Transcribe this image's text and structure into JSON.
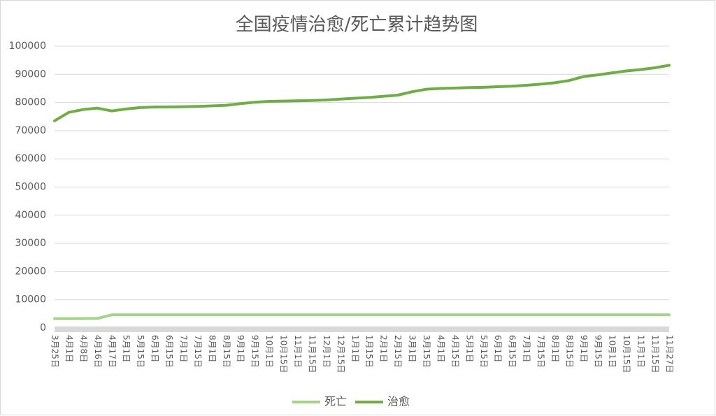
{
  "chart_data": {
    "type": "line",
    "title": "全国疫情治愈/死亡累计趋势图",
    "categories": [
      "3月25日",
      "4月1日",
      "4月8日",
      "4月16日",
      "4月17日",
      "5月1日",
      "5月15日",
      "6月1日",
      "6月15日",
      "7月1日",
      "7月15日",
      "8月1日",
      "8月15日",
      "9月1日",
      "9月15日",
      "10月1日",
      "10月15日",
      "11月1日",
      "11月15日",
      "12月1日",
      "12月15日",
      "1月1日",
      "1月15日",
      "2月1日",
      "2月15日",
      "3月1日",
      "3月15日",
      "4月1日",
      "4月15日",
      "5月1日",
      "5月15日",
      "6月1日",
      "6月15日",
      "7月1日",
      "7月15日",
      "8月1日",
      "8月15日",
      "9月1日",
      "9月15日",
      "10月1日",
      "10月15日",
      "11月1日",
      "11月15日",
      "11月27日"
    ],
    "series": [
      {
        "name": "死亡",
        "color": "#a9d18e",
        "values": [
          3280,
          3300,
          3330,
          3350,
          4640,
          4640,
          4640,
          4640,
          4640,
          4640,
          4640,
          4640,
          4640,
          4640,
          4640,
          4640,
          4640,
          4640,
          4640,
          4640,
          4640,
          4650,
          4650,
          4650,
          4650,
          4650,
          4650,
          4650,
          4650,
          4650,
          4650,
          4650,
          4650,
          4650,
          4650,
          4650,
          4650,
          4650,
          4650,
          4650,
          4650,
          4650,
          4650,
          4650
        ]
      },
      {
        "name": "治愈",
        "color": "#70ad47",
        "values": [
          73500,
          76500,
          77500,
          78000,
          77000,
          77700,
          78200,
          78400,
          78450,
          78500,
          78600,
          78800,
          79000,
          79600,
          80100,
          80400,
          80500,
          80600,
          80700,
          80900,
          81200,
          81500,
          81800,
          82200,
          82600,
          83800,
          84700,
          85000,
          85100,
          85300,
          85400,
          85600,
          85800,
          86100,
          86500,
          87000,
          87800,
          89200,
          89800,
          90500,
          91200,
          91700,
          92300,
          93200
        ]
      }
    ],
    "ylim": [
      0,
      100000
    ],
    "yticks": [
      0,
      10000,
      20000,
      30000,
      40000,
      50000,
      60000,
      70000,
      80000,
      90000,
      100000
    ],
    "grid": true,
    "legend": "bottom"
  }
}
